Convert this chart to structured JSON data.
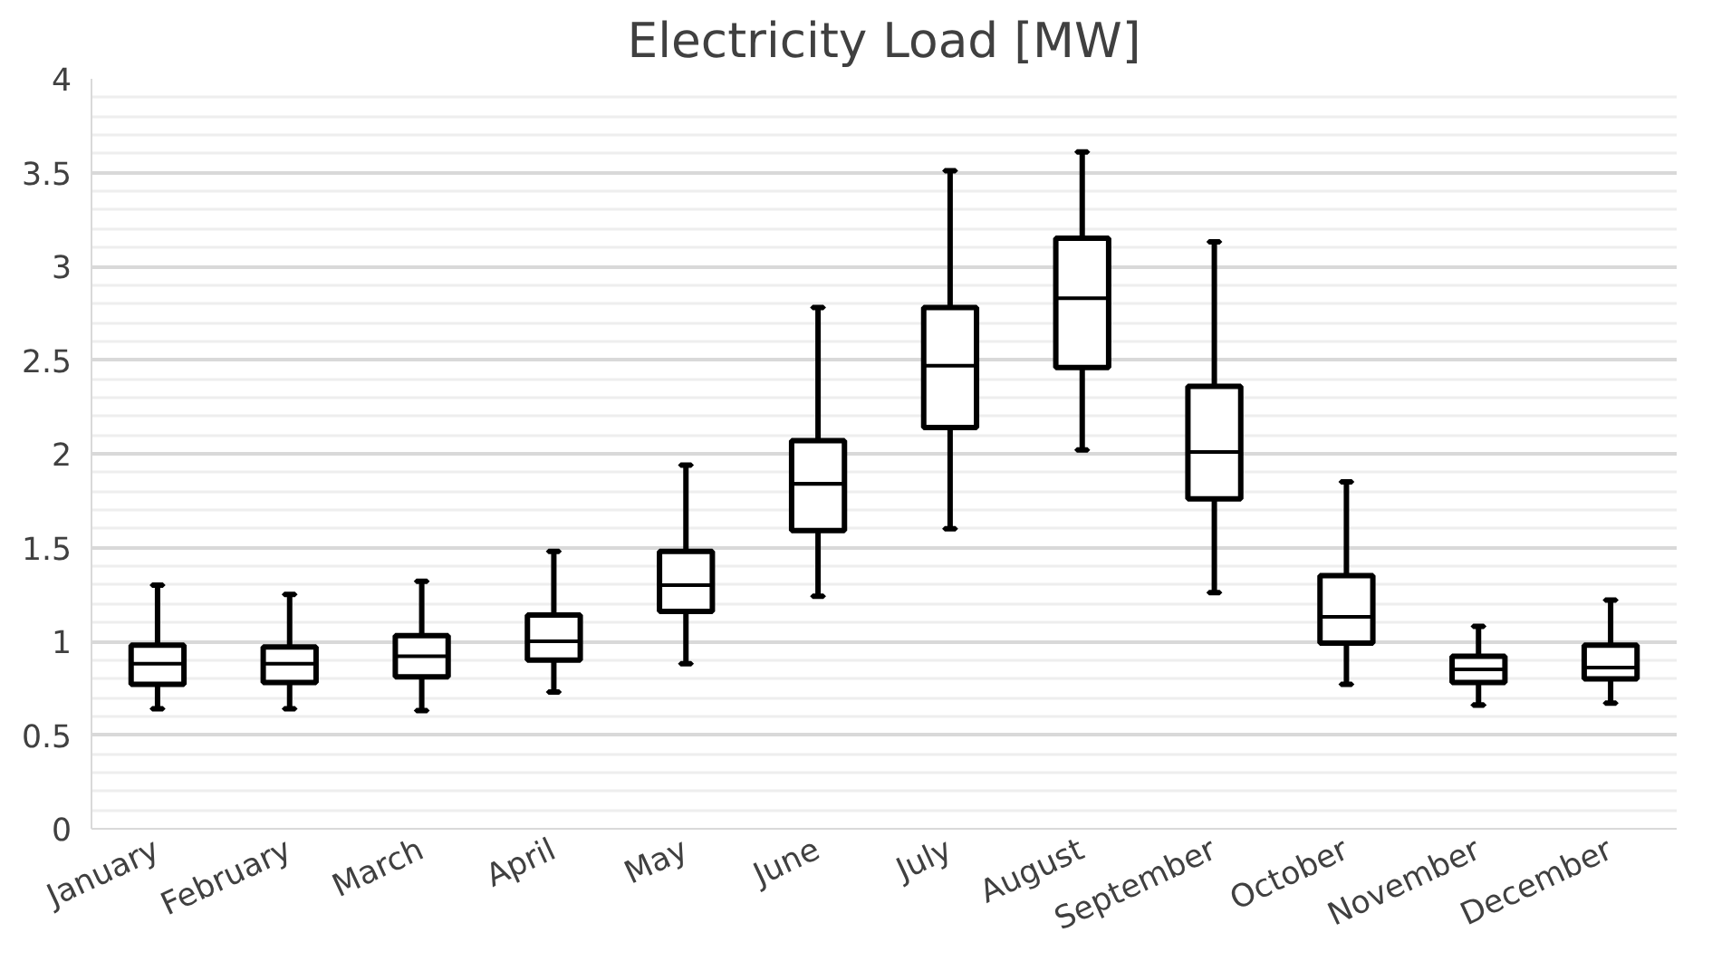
{
  "chart_data": {
    "type": "box",
    "title": "Electricity Load [MW]",
    "categories": [
      "January",
      "February",
      "March",
      "April",
      "May",
      "June",
      "July",
      "August",
      "September",
      "October",
      "November",
      "December"
    ],
    "boxes": [
      {
        "low": 0.64,
        "q1": 0.77,
        "median": 0.88,
        "q3": 0.98,
        "high": 1.3
      },
      {
        "low": 0.64,
        "q1": 0.78,
        "median": 0.88,
        "q3": 0.97,
        "high": 1.25
      },
      {
        "low": 0.63,
        "q1": 0.81,
        "median": 0.92,
        "q3": 1.03,
        "high": 1.32
      },
      {
        "low": 0.73,
        "q1": 0.9,
        "median": 1.0,
        "q3": 1.14,
        "high": 1.48
      },
      {
        "low": 0.88,
        "q1": 1.16,
        "median": 1.3,
        "q3": 1.48,
        "high": 1.94
      },
      {
        "low": 1.24,
        "q1": 1.59,
        "median": 1.84,
        "q3": 2.07,
        "high": 2.78
      },
      {
        "low": 1.6,
        "q1": 2.14,
        "median": 2.47,
        "q3": 2.78,
        "high": 3.51
      },
      {
        "low": 2.02,
        "q1": 2.46,
        "median": 2.83,
        "q3": 3.15,
        "high": 3.61
      },
      {
        "low": 1.26,
        "q1": 1.76,
        "median": 2.01,
        "q3": 2.36,
        "high": 3.13
      },
      {
        "low": 0.77,
        "q1": 0.99,
        "median": 1.13,
        "q3": 1.35,
        "high": 1.85
      },
      {
        "low": 0.66,
        "q1": 0.78,
        "median": 0.85,
        "q3": 0.92,
        "high": 1.08
      },
      {
        "low": 0.67,
        "q1": 0.8,
        "median": 0.86,
        "q3": 0.98,
        "high": 1.22
      }
    ],
    "ylim": [
      0,
      4
    ],
    "yticks": [
      0,
      0.5,
      1,
      1.5,
      2,
      2.5,
      3,
      3.5,
      4
    ],
    "grid": "y"
  }
}
